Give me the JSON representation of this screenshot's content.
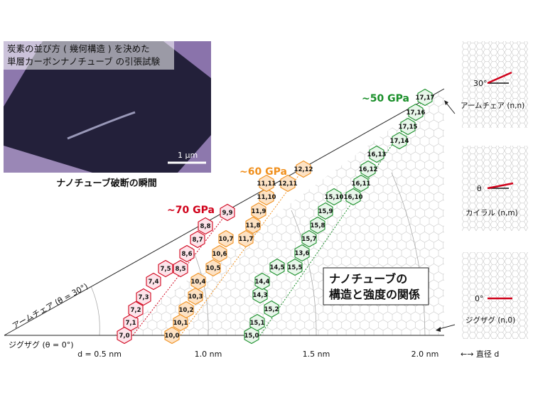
{
  "photo": {
    "caption_line1": "炭素の並び方 ( 幾何構造 ) を決めた",
    "caption_line2": "単層カーボンナノチューブ の引張試験",
    "scale_bar": "1 μm",
    "label": "ナノチューブ破断の瞬間"
  },
  "groups": [
    {
      "strength": "~70 GPa",
      "color": "#d0021b",
      "fill": "#fde4ea",
      "tubes": [
        "7,0",
        "7,1",
        "7,2",
        "7,3",
        "7,4",
        "7,5",
        "8,5",
        "8,6",
        "8,7",
        "8,8",
        "9,9"
      ]
    },
    {
      "strength": "~60 GPa",
      "color": "#f0901e",
      "fill": "#fde2c4",
      "tubes": [
        "10,0",
        "10,1",
        "10,2",
        "10,3",
        "10,4",
        "10,5",
        "10,6",
        "10,7",
        "11,7",
        "11,8",
        "11,9",
        "11,10",
        "11,11",
        "12,11",
        "12,12"
      ]
    },
    {
      "strength": "~50 GPa",
      "color": "#1a8f2a",
      "fill": "#e8f6ea",
      "tubes": [
        "15,0",
        "15,1",
        "15,2",
        "14,3",
        "14,4",
        "14,5",
        "15,5",
        "13,6",
        "15,7",
        "15,8",
        "15,9",
        "15,10",
        "16,10",
        "16,11",
        "16,12",
        "16,13",
        "17,14",
        "17,15",
        "17,16",
        "17,17"
      ]
    }
  ],
  "axes": {
    "armchair": "アームチェア (θ = 30°)",
    "zigzag": "ジグザグ (θ = 0°)"
  },
  "diameter_ticks": [
    "d = 0.5 nm",
    "1.0 nm",
    "1.5 nm",
    "2.0 nm"
  ],
  "title_box": {
    "line1": "ナノチューブの",
    "line2": "構造と強度の関係"
  },
  "side_panels": [
    {
      "angle": "30°",
      "label": "アームチェア (n,n)"
    },
    {
      "angle": "θ",
      "label": "カイラル (n,m)"
    },
    {
      "angle": "0°",
      "label": "ジグザグ (n,0)"
    }
  ],
  "diameter_note": "←→ 直径 d"
}
